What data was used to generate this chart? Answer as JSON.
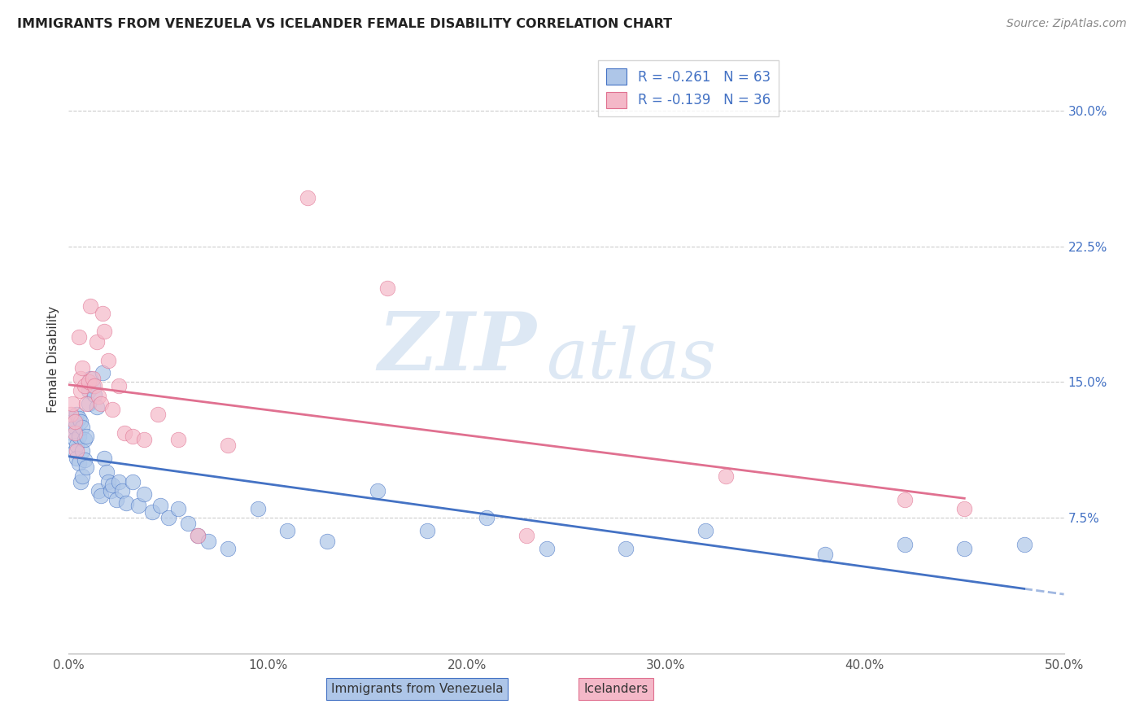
{
  "title": "IMMIGRANTS FROM VENEZUELA VS ICELANDER FEMALE DISABILITY CORRELATION CHART",
  "source": "Source: ZipAtlas.com",
  "ylabel": "Female Disability",
  "xlim": [
    0.0,
    0.5
  ],
  "ylim": [
    0.0,
    0.325
  ],
  "xticks": [
    0.0,
    0.1,
    0.2,
    0.3,
    0.4,
    0.5
  ],
  "xticklabels": [
    "0.0%",
    "10.0%",
    "20.0%",
    "30.0%",
    "40.0%",
    "50.0%"
  ],
  "yticks_right": [
    0.075,
    0.15,
    0.225,
    0.3
  ],
  "ytick_right_labels": [
    "7.5%",
    "15.0%",
    "22.5%",
    "30.0%"
  ],
  "R_blue": -0.261,
  "N_blue": 63,
  "R_pink": -0.139,
  "N_pink": 36,
  "blue_color": "#aec6e8",
  "blue_line_color": "#4472c4",
  "pink_color": "#f4b8c8",
  "pink_line_color": "#e07090",
  "watermark_zip": "ZIP",
  "watermark_atlas": "atlas",
  "legend_label_blue": "Immigrants from Venezuela",
  "legend_label_pink": "Icelanders",
  "blue_scatter_x": [
    0.001,
    0.002,
    0.002,
    0.003,
    0.003,
    0.003,
    0.004,
    0.004,
    0.004,
    0.005,
    0.005,
    0.005,
    0.006,
    0.006,
    0.007,
    0.007,
    0.007,
    0.008,
    0.008,
    0.009,
    0.009,
    0.01,
    0.01,
    0.011,
    0.012,
    0.013,
    0.014,
    0.015,
    0.016,
    0.017,
    0.018,
    0.019,
    0.02,
    0.021,
    0.022,
    0.024,
    0.025,
    0.027,
    0.029,
    0.032,
    0.035,
    0.038,
    0.042,
    0.046,
    0.05,
    0.055,
    0.06,
    0.065,
    0.07,
    0.08,
    0.095,
    0.11,
    0.13,
    0.155,
    0.18,
    0.21,
    0.24,
    0.28,
    0.32,
    0.38,
    0.42,
    0.45,
    0.48
  ],
  "blue_scatter_y": [
    0.13,
    0.128,
    0.122,
    0.125,
    0.118,
    0.112,
    0.132,
    0.115,
    0.108,
    0.13,
    0.12,
    0.105,
    0.128,
    0.095,
    0.125,
    0.112,
    0.098,
    0.118,
    0.107,
    0.12,
    0.103,
    0.145,
    0.138,
    0.152,
    0.148,
    0.143,
    0.136,
    0.09,
    0.087,
    0.155,
    0.108,
    0.1,
    0.095,
    0.09,
    0.093,
    0.085,
    0.095,
    0.09,
    0.083,
    0.095,
    0.082,
    0.088,
    0.078,
    0.082,
    0.075,
    0.08,
    0.072,
    0.065,
    0.062,
    0.058,
    0.08,
    0.068,
    0.062,
    0.09,
    0.068,
    0.075,
    0.058,
    0.058,
    0.068,
    0.055,
    0.06,
    0.058,
    0.06
  ],
  "pink_scatter_x": [
    0.001,
    0.002,
    0.003,
    0.003,
    0.004,
    0.005,
    0.006,
    0.006,
    0.007,
    0.008,
    0.009,
    0.01,
    0.011,
    0.012,
    0.013,
    0.014,
    0.015,
    0.016,
    0.017,
    0.018,
    0.02,
    0.022,
    0.025,
    0.028,
    0.032,
    0.038,
    0.045,
    0.055,
    0.065,
    0.08,
    0.12,
    0.16,
    0.23,
    0.33,
    0.42,
    0.45
  ],
  "pink_scatter_y": [
    0.132,
    0.138,
    0.122,
    0.128,
    0.112,
    0.175,
    0.152,
    0.145,
    0.158,
    0.148,
    0.138,
    0.15,
    0.192,
    0.152,
    0.148,
    0.172,
    0.142,
    0.138,
    0.188,
    0.178,
    0.162,
    0.135,
    0.148,
    0.122,
    0.12,
    0.118,
    0.132,
    0.118,
    0.065,
    0.115,
    0.252,
    0.202,
    0.065,
    0.098,
    0.085,
    0.08
  ]
}
